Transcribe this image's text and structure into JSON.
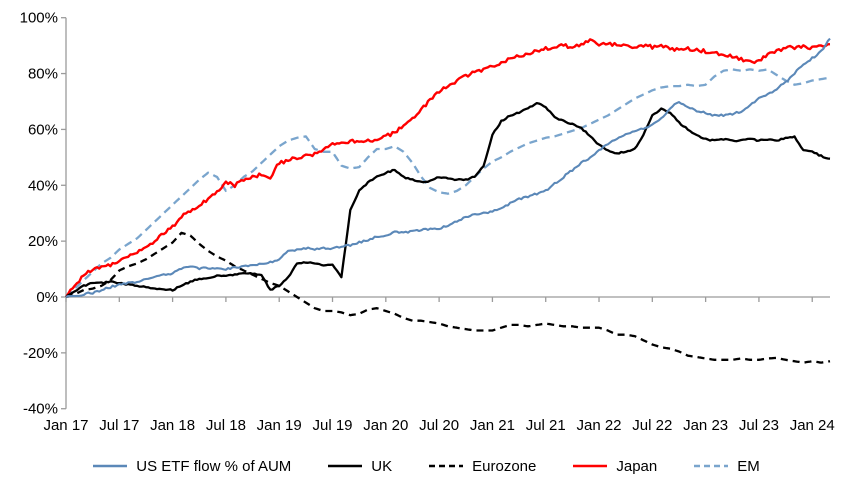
{
  "chart_data": {
    "type": "line",
    "title": "",
    "xlabel": "",
    "ylabel": "",
    "ylim": [
      -40,
      100
    ],
    "y_tick_step": 20,
    "y_tick_labels": [
      "100%",
      "80%",
      "60%",
      "40%",
      "20%",
      "0%",
      "-20%",
      "-40%"
    ],
    "x_tick_labels": [
      "Jan 17",
      "Jul 17",
      "Jan 18",
      "Jul 18",
      "Jan 19",
      "Jul 19",
      "Jan 20",
      "Jul 20",
      "Jan 21",
      "Jul 21",
      "Jan 22",
      "Jul 22",
      "Jan 23",
      "Jul 23",
      "Jan 24"
    ],
    "x_unit": "monthly points, Jan 2017 through Mar 2024",
    "grid": "none; horizontal category axis drawn at 0% with tick marks",
    "legend_position": "bottom",
    "axis_color": "#9b9b9b",
    "series": [
      {
        "name": "US ETF flow % of AUM",
        "color": "#5b88b8",
        "style": "solid",
        "values": [
          0,
          0.5,
          1,
          1.5,
          2.5,
          3.5,
          4.5,
          5,
          5.5,
          6.5,
          7,
          8,
          8.5,
          10,
          11,
          10,
          10.5,
          10,
          10,
          10.5,
          11,
          11.5,
          12,
          12.5,
          13.5,
          16.5,
          17,
          17.5,
          17,
          17.5,
          17.5,
          18,
          18.5,
          19.5,
          20.5,
          21.5,
          22,
          23.5,
          23,
          23.5,
          24,
          24.5,
          24.5,
          25.5,
          27,
          28.5,
          29.5,
          30,
          30.5,
          32,
          33.5,
          35,
          36,
          37,
          38,
          40.5,
          43,
          45.5,
          48,
          50,
          52.5,
          55,
          56.5,
          58,
          59.5,
          60.5,
          61.5,
          64,
          67.5,
          70,
          68,
          66.5,
          66,
          65,
          65,
          65.5,
          66.5,
          68.5,
          71,
          72.5,
          74.5,
          77,
          80,
          83.5,
          85.5,
          88,
          92.5
        ]
      },
      {
        "name": "UK",
        "color": "#000000",
        "style": "solid",
        "values": [
          0,
          2,
          4,
          5,
          5,
          5.5,
          5,
          4.5,
          4,
          3.5,
          3,
          2.5,
          2.5,
          4,
          5.5,
          6.5,
          7,
          7.5,
          7.5,
          8,
          8.5,
          8.5,
          8,
          2.5,
          4,
          7,
          12,
          12.5,
          12,
          11.5,
          11.5,
          7,
          31,
          38,
          41,
          43,
          44.5,
          45.5,
          43,
          42,
          41,
          41.5,
          43,
          42.5,
          42,
          42,
          43,
          47,
          58,
          63,
          65,
          66,
          67.5,
          69.5,
          68,
          64.5,
          63,
          62,
          60.5,
          57.5,
          54.5,
          52.5,
          51.5,
          52,
          53,
          58,
          65,
          67.5,
          66,
          62.5,
          60,
          58,
          56.5,
          56,
          56.5,
          56,
          56,
          56.5,
          56,
          56.5,
          56,
          57,
          57.5,
          52.5,
          52,
          50.5,
          49.5
        ]
      },
      {
        "name": "Eurozone",
        "color": "#000000",
        "style": "dashed",
        "values": [
          0,
          1,
          2.5,
          3,
          4,
          6,
          9.5,
          11,
          12,
          13.5,
          15.5,
          17.5,
          19.5,
          23,
          22,
          19,
          16.5,
          14.5,
          13,
          11,
          9.5,
          8,
          6.5,
          5,
          4,
          2,
          0,
          -2,
          -4,
          -5,
          -5,
          -5.5,
          -6.5,
          -6,
          -4.5,
          -4,
          -5,
          -6,
          -7.5,
          -8.5,
          -8.5,
          -9,
          -9.5,
          -10.5,
          -11,
          -11.5,
          -12,
          -12,
          -12,
          -11,
          -10,
          -10,
          -10.5,
          -10,
          -9.5,
          -10,
          -10.5,
          -10.5,
          -11,
          -11,
          -11,
          -12,
          -13.5,
          -13.5,
          -14,
          -15.5,
          -17,
          -18,
          -18.5,
          -19.5,
          -21,
          -21.5,
          -22,
          -22.5,
          -22.5,
          -22.5,
          -22,
          -22.5,
          -22.5,
          -22,
          -21.8,
          -22.5,
          -23,
          -23.5,
          -23,
          -23.5,
          -23
        ]
      },
      {
        "name": "Japan",
        "color": "#ff0000",
        "style": "solid",
        "values": [
          0,
          4,
          8,
          10,
          10.5,
          11.5,
          13,
          15,
          16,
          18,
          20,
          23,
          25,
          29,
          31,
          33,
          35,
          38,
          41,
          40,
          42,
          43,
          44,
          43,
          48,
          49,
          50,
          50.5,
          51,
          52.5,
          54.5,
          55,
          55.5,
          56,
          56,
          56.5,
          57.5,
          59,
          61,
          64,
          67,
          70.5,
          73.5,
          75.5,
          77.5,
          79,
          80.5,
          81.5,
          82.5,
          84,
          85.5,
          86.5,
          87,
          88,
          89,
          89.5,
          90,
          89.5,
          90.5,
          92,
          90.5,
          91,
          90,
          90.5,
          89.5,
          90,
          89.5,
          90,
          89,
          88.5,
          89,
          88.5,
          88,
          87.5,
          86.5,
          86,
          85,
          84,
          84.5,
          86.5,
          88,
          89.5,
          89,
          89.5,
          89,
          90,
          90.5
        ]
      },
      {
        "name": "EM",
        "color": "#7aa5cd",
        "style": "dashed",
        "values": [
          0,
          3,
          6,
          9,
          12,
          14,
          17,
          19,
          21,
          24,
          27,
          30,
          33,
          36,
          39,
          42,
          44.5,
          43,
          38,
          40,
          43,
          45,
          48,
          51,
          54,
          56,
          57,
          57.5,
          53,
          52,
          52,
          47,
          46,
          46.5,
          50,
          53,
          53,
          54,
          52,
          48,
          43,
          39,
          37.5,
          37,
          38,
          40,
          43,
          46,
          48.5,
          50,
          52,
          53.5,
          55,
          56,
          57,
          57.5,
          58.5,
          59.5,
          60.5,
          62,
          63.5,
          65,
          67,
          69,
          71,
          72.5,
          74,
          75,
          75.5,
          75.5,
          76,
          75.5,
          76,
          79,
          81,
          81.5,
          81,
          81.5,
          81,
          81.5,
          79.5,
          77.5,
          76,
          76.5,
          77.5,
          78,
          78.5
        ]
      }
    ]
  }
}
